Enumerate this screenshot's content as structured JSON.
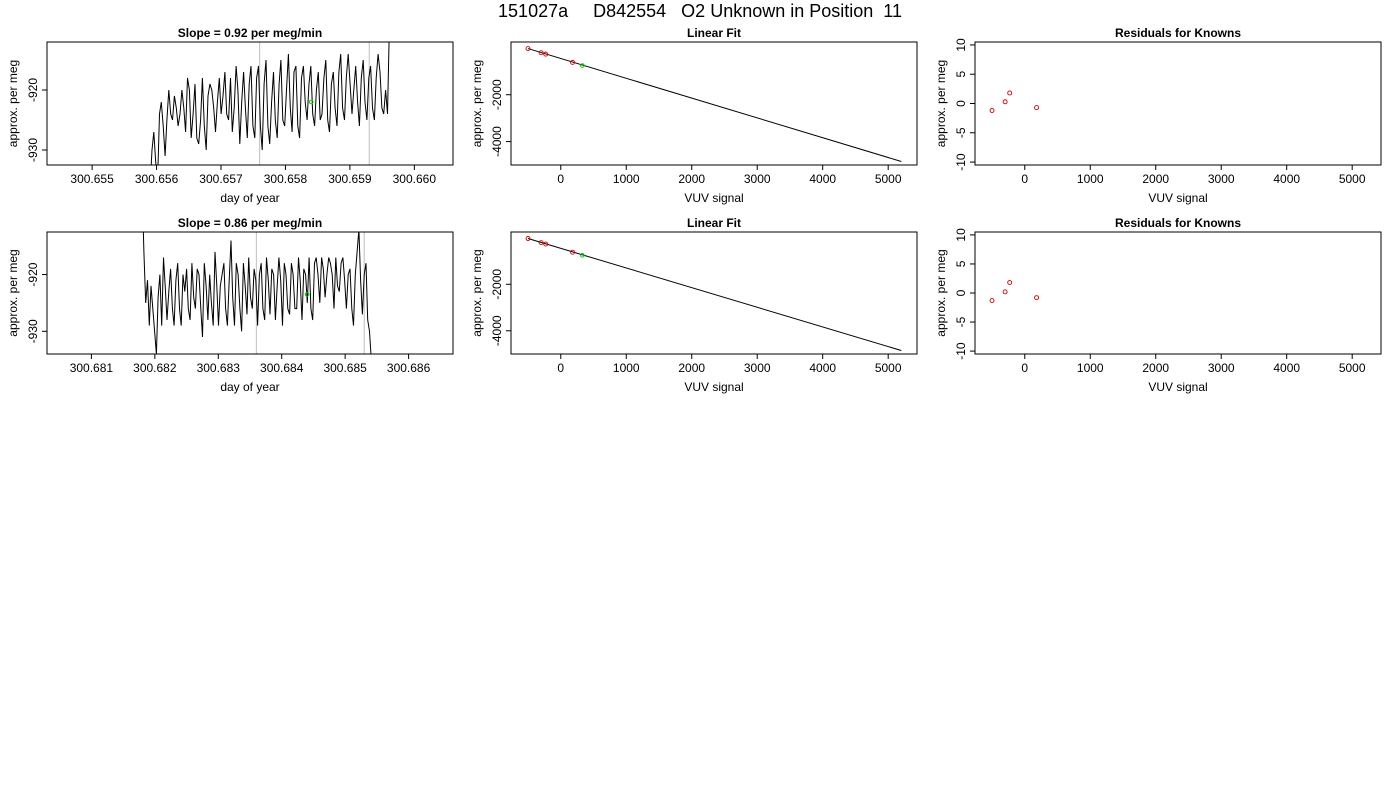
{
  "page_title": "151027a     D842554   O2 Unknown in Position  11",
  "chart_data": [
    {
      "type": "line",
      "title": "Slope =  0.92  per meg/min",
      "xlabel": "day of year",
      "ylabel": "approx. per meg",
      "xlim": [
        300.6543,
        300.6606
      ],
      "ylim": [
        -932.5,
        -912.0
      ],
      "xticks": [
        "300.655",
        "300.656",
        "300.657",
        "300.658",
        "300.659",
        "300.660"
      ],
      "xtick_values": [
        300.655,
        300.656,
        300.657,
        300.658,
        300.659,
        300.66
      ],
      "yticks": [
        "-920",
        "-930"
      ],
      "ytick_values": [
        -920,
        -930
      ],
      "vlines": [
        300.6576,
        300.6593
      ],
      "series": [
        {
          "x0": 300.6559,
          "dx": 2.9e-05,
          "values": [
            -936,
            -930,
            -927,
            -932,
            -935,
            -924,
            -922,
            -926,
            -931,
            -925,
            -920,
            -924,
            -925,
            -921,
            -923,
            -926,
            -924,
            -920,
            -923,
            -927,
            -918,
            -920,
            -928,
            -924,
            -919,
            -928,
            -929,
            -925,
            -918,
            -926,
            -930,
            -921,
            -919,
            -920,
            -923,
            -927,
            -922,
            -918,
            -924,
            -921,
            -917,
            -924,
            -925,
            -918,
            -927,
            -923,
            -916,
            -920,
            -929,
            -922,
            -917,
            -923,
            -928,
            -919,
            -916,
            -926,
            -928,
            -918,
            -916,
            -926,
            -930,
            -919,
            -915,
            -926,
            -929,
            -922,
            -917,
            -925,
            -928,
            -919,
            -915,
            -925,
            -926,
            -920,
            -914,
            -923,
            -927,
            -917,
            -916,
            -926,
            -928,
            -918,
            -916,
            -922,
            -925,
            -919,
            -916,
            -924,
            -926,
            -920,
            -917,
            -925,
            -924,
            -918,
            -915,
            -925,
            -927,
            -919,
            -917,
            -923,
            -926,
            -917,
            -914,
            -923,
            -925,
            -918,
            -914,
            -919,
            -924,
            -920,
            -916,
            -922,
            -926,
            -918,
            -915,
            -922,
            -925,
            -918,
            -916,
            -923,
            -925,
            -918,
            -914,
            -917,
            -923,
            -924,
            -920,
            -924,
            -910
          ]
        }
      ],
      "highlight": {
        "x": 300.6584,
        "y": -922
      }
    },
    {
      "type": "scatter",
      "title": "Linear Fit",
      "xlabel": "VUV signal",
      "ylabel": "approx. per meg",
      "xlim": [
        -760,
        5440
      ],
      "ylim": [
        -5000,
        250
      ],
      "xticks": [
        "0",
        "1000",
        "2000",
        "3000",
        "4000",
        "5000"
      ],
      "xtick_values": [
        0,
        1000,
        2000,
        3000,
        4000,
        5000
      ],
      "yticks": [
        "-2000",
        "-4000"
      ],
      "ytick_values": [
        -2000,
        -4000
      ],
      "fit_line": [
        [
          -500,
          -30
        ],
        [
          5200,
          -4850
        ]
      ],
      "points": [
        [
          -500,
          -30
        ],
        [
          -300,
          -208
        ],
        [
          -230,
          -268
        ],
        [
          180,
          -620
        ]
      ],
      "highlight": {
        "x": 330,
        "y": -755
      }
    },
    {
      "type": "scatter",
      "title": "Residuals for Knowns",
      "xlabel": "VUV signal",
      "ylabel": "approx. per meg",
      "xlim": [
        -760,
        5440
      ],
      "ylim": [
        -10.5,
        10.5
      ],
      "xticks": [
        "0",
        "1000",
        "2000",
        "3000",
        "4000",
        "5000"
      ],
      "xtick_values": [
        0,
        1000,
        2000,
        3000,
        4000,
        5000
      ],
      "yticks": [
        "-10",
        "-5",
        "0",
        "5",
        "10"
      ],
      "ytick_values": [
        -10,
        -5,
        0,
        5,
        10
      ],
      "points": [
        [
          -500,
          -1.2
        ],
        [
          -300,
          0.3
        ],
        [
          -230,
          1.8
        ],
        [
          180,
          -0.7
        ]
      ]
    },
    {
      "type": "line",
      "title": "Slope =  0.86  per meg/min",
      "xlabel": "day of year",
      "ylabel": "approx. per meg",
      "xlim": [
        300.6803,
        300.6867
      ],
      "ylim": [
        -934.0,
        -912.5
      ],
      "xticks": [
        "300.681",
        "300.682",
        "300.683",
        "300.684",
        "300.685",
        "300.686"
      ],
      "xtick_values": [
        300.681,
        300.682,
        300.683,
        300.684,
        300.685,
        300.686
      ],
      "yticks": [
        "-920",
        "-930"
      ],
      "ytick_values": [
        -920,
        -930
      ],
      "vlines": [
        300.6836,
        300.6853
      ],
      "series": [
        {
          "x0": 300.6818,
          "dx": 2.8e-05,
          "values": [
            -905,
            -916,
            -925,
            -921,
            -929,
            -922,
            -926,
            -930,
            -934,
            -924,
            -920,
            -929,
            -917,
            -922,
            -928,
            -923,
            -919,
            -926,
            -929,
            -921,
            -918,
            -926,
            -929,
            -920,
            -923,
            -919,
            -926,
            -928,
            -918,
            -924,
            -926,
            -919,
            -920,
            -926,
            -931,
            -918,
            -922,
            -928,
            -920,
            -925,
            -929,
            -916,
            -922,
            -929,
            -922,
            -920,
            -918,
            -926,
            -929,
            -921,
            -914,
            -924,
            -929,
            -918,
            -920,
            -926,
            -930,
            -918,
            -922,
            -927,
            -917,
            -924,
            -926,
            -919,
            -921,
            -929,
            -920,
            -918,
            -926,
            -928,
            -917,
            -921,
            -927,
            -919,
            -920,
            -928,
            -922,
            -917,
            -921,
            -929,
            -918,
            -920,
            -926,
            -927,
            -918,
            -920,
            -926,
            -926,
            -917,
            -921,
            -928,
            -919,
            -920,
            -925,
            -917,
            -926,
            -928,
            -918,
            -917,
            -920,
            -925,
            -917,
            -919,
            -924,
            -920,
            -917,
            -918,
            -920,
            -926,
            -917,
            -922,
            -923,
            -918,
            -917,
            -921,
            -926,
            -920,
            -919,
            -926,
            -929,
            -920,
            -916,
            -912,
            -921,
            -927,
            -920,
            -918,
            -928,
            -930,
            -935
          ]
        }
      ],
      "highlight": {
        "x": 300.6844,
        "y": -923.5
      }
    },
    {
      "type": "scatter",
      "title": "Linear Fit",
      "xlabel": "VUV signal",
      "ylabel": "approx. per meg",
      "xlim": [
        -760,
        5440
      ],
      "ylim": [
        -5000,
        250
      ],
      "xticks": [
        "0",
        "1000",
        "2000",
        "3000",
        "4000",
        "5000"
      ],
      "xtick_values": [
        0,
        1000,
        2000,
        3000,
        4000,
        5000
      ],
      "yticks": [
        "-2000",
        "-4000"
      ],
      "ytick_values": [
        -2000,
        -4000
      ],
      "fit_line": [
        [
          -500,
          -30
        ],
        [
          5200,
          -4850
        ]
      ],
      "points": [
        [
          -500,
          -30
        ],
        [
          -300,
          -208
        ],
        [
          -230,
          -268
        ],
        [
          180,
          -620
        ]
      ],
      "highlight": {
        "x": 330,
        "y": -755
      }
    },
    {
      "type": "scatter",
      "title": "Residuals for Knowns",
      "xlabel": "VUV signal",
      "ylabel": "approx. per meg",
      "xlim": [
        -760,
        5440
      ],
      "ylim": [
        -10.5,
        10.5
      ],
      "xticks": [
        "0",
        "1000",
        "2000",
        "3000",
        "4000",
        "5000"
      ],
      "xtick_values": [
        0,
        1000,
        2000,
        3000,
        4000,
        5000
      ],
      "yticks": [
        "-10",
        "-5",
        "0",
        "5",
        "10"
      ],
      "ytick_values": [
        -10,
        -5,
        0,
        5,
        10
      ],
      "points": [
        [
          -500,
          -1.3
        ],
        [
          -300,
          0.2
        ],
        [
          -230,
          1.8
        ],
        [
          180,
          -0.8
        ]
      ]
    }
  ],
  "colors": {
    "axis": "#000000",
    "line": "#000000",
    "vline": "#bebebe",
    "point": "#cc0000",
    "highlight": "#00cc00"
  }
}
